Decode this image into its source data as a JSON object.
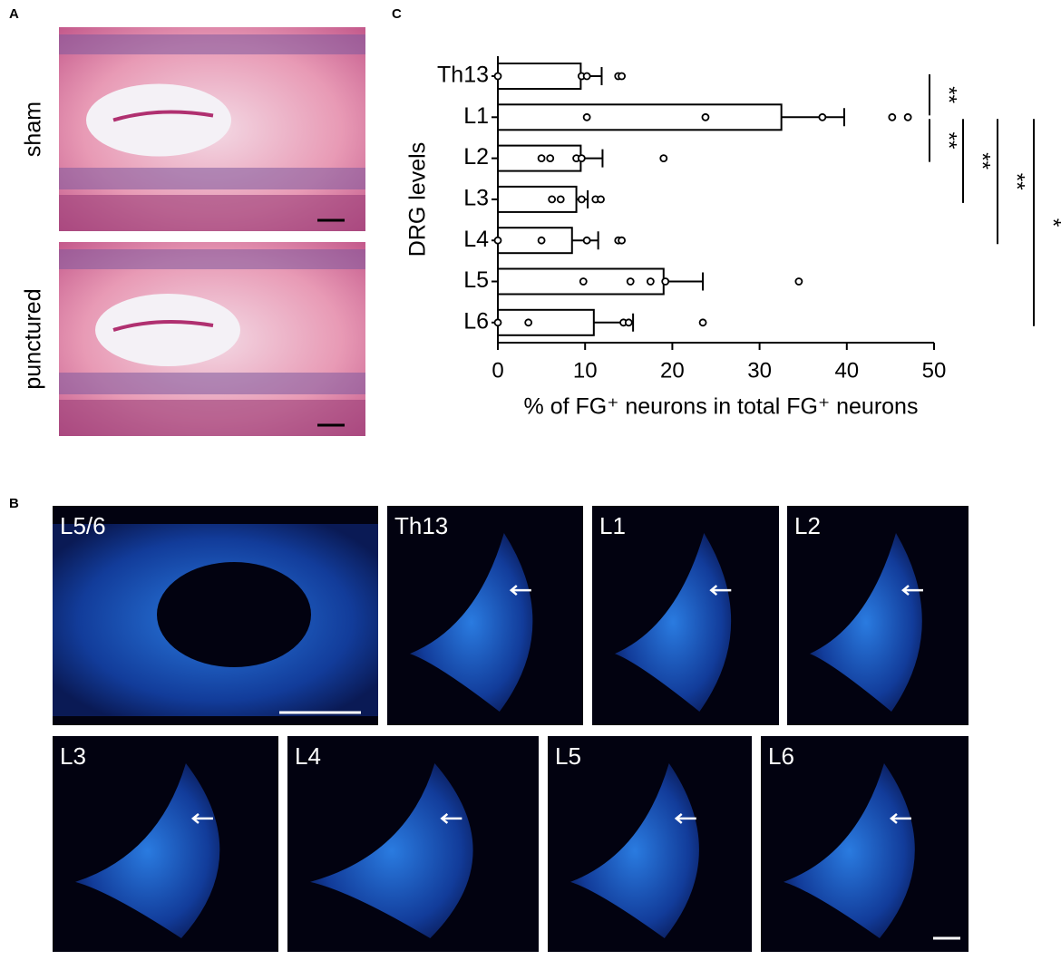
{
  "panels": {
    "A": {
      "label": "A",
      "images": [
        {
          "label": "sham"
        },
        {
          "label": "punctured"
        }
      ]
    },
    "B": {
      "label": "B",
      "images": [
        {
          "label": "L5/6"
        },
        {
          "label": "Th13"
        },
        {
          "label": "L1"
        },
        {
          "label": "L2"
        },
        {
          "label": "L3"
        },
        {
          "label": "L4"
        },
        {
          "label": "L5"
        },
        {
          "label": "L6"
        }
      ]
    },
    "C": {
      "label": "C"
    }
  },
  "chart_data": {
    "type": "bar",
    "orientation": "horizontal",
    "xlabel": "% of FG⁺ neurons in total FG⁺ neurons",
    "ylabel": "DRG levels",
    "categories": [
      "Th13",
      "L1",
      "L2",
      "L3",
      "L4",
      "L5",
      "L6"
    ],
    "values": [
      9.5,
      32.5,
      9.5,
      9,
      8.5,
      19,
      11
    ],
    "errors": [
      2.4,
      7.2,
      2.5,
      1.3,
      3,
      4.5,
      4.5
    ],
    "points": [
      [
        0,
        9.6,
        10.2,
        13.8,
        14.2
      ],
      [
        10.2,
        23.8,
        37.2,
        45.2,
        47
      ],
      [
        5,
        6,
        9,
        9.6,
        19
      ],
      [
        6.2,
        7.2,
        9.6,
        11.2,
        11.8
      ],
      [
        0,
        5,
        10.2,
        13.8,
        14.2
      ],
      [
        9.8,
        15.2,
        17.5,
        19.2,
        34.5
      ],
      [
        0,
        3.5,
        14.4,
        15,
        23.5
      ]
    ],
    "color": "#ffffff",
    "xlim": [
      0,
      50
    ],
    "xticks": [
      0,
      10,
      20,
      30,
      40,
      50
    ],
    "comparisons": [
      {
        "from": "Th13",
        "to": "L1",
        "label": "**"
      },
      {
        "from": "L1",
        "to": "L2",
        "label": "**"
      },
      {
        "from": "L1",
        "to": "L3",
        "label": "**"
      },
      {
        "from": "L1",
        "to": "L4",
        "label": "**"
      },
      {
        "from": "L1",
        "to": "L6",
        "label": "*"
      }
    ]
  }
}
